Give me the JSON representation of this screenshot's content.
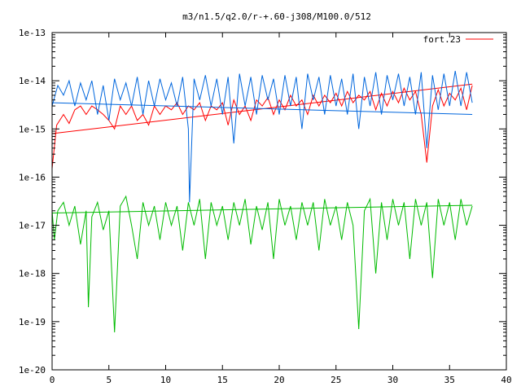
{
  "chart_data": {
    "type": "line",
    "title": "m3/n1.5/q2.0/r-+.60-j308/M100.0/512",
    "xlabel": "",
    "ylabel": "",
    "xlim": [
      0,
      40
    ],
    "ylim": [
      1e-20,
      1e-13
    ],
    "yscale": "log",
    "grid": false,
    "legend": {
      "position": "top-right",
      "entries": [
        "fort.23"
      ]
    },
    "x_ticks": [
      0,
      5,
      10,
      15,
      20,
      25,
      30,
      35,
      40
    ],
    "x_tick_labels": [
      "0",
      "5",
      "10",
      "15",
      "20",
      "25",
      "30",
      "35",
      "40"
    ],
    "y_ticks": [
      1e-20,
      1e-19,
      1e-18,
      1e-17,
      1e-16,
      1e-15,
      1e-14,
      1e-13
    ],
    "y_tick_labels": [
      "1e-20",
      "1e-19",
      "1e-18",
      "1e-17",
      "1e-16",
      "1e-15",
      "1e-14",
      "1e-13"
    ],
    "series": [
      {
        "name": "fort.23",
        "color": "#ff0000",
        "x": [
          0,
          0.4,
          1,
          1.5,
          2,
          2.5,
          3,
          3.5,
          4,
          4.5,
          5,
          5.5,
          6,
          6.5,
          7,
          7.5,
          8,
          8.5,
          9,
          9.5,
          10,
          10.5,
          11,
          11.5,
          12,
          12.5,
          13,
          13.5,
          14,
          14.5,
          15,
          15.5,
          16,
          16.5,
          17,
          17.5,
          18,
          18.5,
          19,
          19.5,
          20,
          20.5,
          21,
          21.5,
          22,
          22.5,
          23,
          23.5,
          24,
          24.5,
          25,
          25.5,
          26,
          26.5,
          27,
          27.5,
          28,
          28.5,
          29,
          29.5,
          30,
          30.5,
          31,
          31.5,
          32,
          32.5,
          33,
          33.5,
          34,
          34.5,
          35,
          35.5,
          36,
          36.5,
          37
        ],
        "y": [
          1.5e-16,
          1.2e-15,
          2e-15,
          1.3e-15,
          2.5e-15,
          3e-15,
          2e-15,
          3e-15,
          2.5e-15,
          2e-15,
          1.5e-15,
          1e-15,
          3e-15,
          2e-15,
          3e-15,
          1.5e-15,
          2e-15,
          1.2e-15,
          3e-15,
          2e-15,
          3e-15,
          2.5e-15,
          3.5e-15,
          2e-15,
          3e-15,
          2.5e-15,
          3.5e-15,
          1.5e-15,
          3e-15,
          2.5e-15,
          3.5e-15,
          1.2e-15,
          4e-15,
          2e-15,
          3e-15,
          1.5e-15,
          4e-15,
          3e-15,
          4.5e-15,
          2e-15,
          4e-15,
          2.5e-15,
          5e-15,
          3e-15,
          4e-15,
          2e-15,
          5e-15,
          3e-15,
          5e-15,
          3.5e-15,
          5.5e-15,
          3e-15,
          6e-15,
          3.5e-15,
          5e-15,
          4e-15,
          6e-15,
          2.5e-15,
          5.5e-15,
          3e-15,
          6e-15,
          3.5e-15,
          7e-15,
          4e-15,
          6e-15,
          2e-15,
          2e-16,
          3e-15,
          6.5e-15,
          3e-15,
          5.5e-15,
          4e-15,
          7e-15,
          2.5e-15,
          8e-15
        ],
        "trend": {
          "x": [
            0,
            37
          ],
          "y": [
            8e-16,
            8.5e-15
          ]
        }
      },
      {
        "name": "",
        "color": "#0066dd",
        "x": [
          0,
          0.5,
          1,
          1.5,
          2,
          2.5,
          3,
          3.5,
          4,
          4.5,
          5,
          5.5,
          6,
          6.5,
          7,
          7.5,
          8,
          8.5,
          9,
          9.5,
          10,
          10.5,
          11,
          11.5,
          12,
          12.1,
          12.5,
          13,
          13.5,
          14,
          14.5,
          15,
          15.5,
          16,
          16.5,
          17,
          17.5,
          18,
          18.5,
          19,
          19.5,
          20,
          20.5,
          21,
          21.5,
          22,
          22.5,
          23,
          23.5,
          24,
          24.5,
          25,
          25.5,
          26,
          26.5,
          27,
          27.5,
          28,
          28.5,
          29,
          29.5,
          30,
          30.5,
          31,
          31.5,
          32,
          32.5,
          33,
          33.5,
          34,
          34.5,
          35,
          35.5,
          36,
          36.5,
          37
        ],
        "y": [
          3e-15,
          8e-15,
          5e-15,
          1e-14,
          3e-15,
          9e-15,
          4e-15,
          1e-14,
          2e-15,
          8e-15,
          1.5e-15,
          1.1e-14,
          4e-15,
          9e-15,
          3e-15,
          1.2e-14,
          2e-15,
          1e-14,
          3e-15,
          1.1e-14,
          4e-15,
          9e-15,
          3e-15,
          1.2e-14,
          1e-15,
          3e-17,
          1.1e-14,
          4e-15,
          1.3e-14,
          3e-15,
          1.1e-14,
          2e-15,
          1.2e-14,
          5e-16,
          1.4e-14,
          3e-15,
          1.2e-14,
          2e-15,
          1.3e-14,
          4e-15,
          1.1e-14,
          2e-15,
          1.3e-14,
          3e-15,
          1.2e-14,
          1e-15,
          1.4e-14,
          4e-15,
          1.2e-14,
          2e-15,
          1.3e-14,
          3e-15,
          1.1e-14,
          2e-15,
          1.4e-14,
          1e-15,
          1.2e-14,
          3e-15,
          1.5e-14,
          2e-15,
          1.3e-14,
          4e-15,
          1.4e-14,
          3e-15,
          1.2e-14,
          2e-15,
          1.5e-14,
          4e-16,
          1.3e-14,
          2.5e-15,
          1.4e-14,
          3e-15,
          1.6e-14,
          3e-15,
          1.5e-14,
          3.5e-15
        ],
        "trend": {
          "x": [
            0,
            37
          ],
          "y": [
            3.5e-15,
            2e-15
          ]
        }
      },
      {
        "name": "",
        "color": "#00bb00",
        "x": [
          0,
          0.2,
          0.5,
          1,
          1.5,
          2,
          2.5,
          3,
          3.2,
          3.5,
          4,
          4.5,
          5,
          5.5,
          6,
          6.5,
          7,
          7.5,
          8,
          8.5,
          9,
          9.5,
          10,
          10.5,
          11,
          11.5,
          12,
          12.5,
          13,
          13.5,
          14,
          14.5,
          15,
          15.5,
          16,
          16.5,
          17,
          17.5,
          18,
          18.5,
          19,
          19.5,
          20,
          20.5,
          21,
          21.5,
          22,
          22.5,
          23,
          23.5,
          24,
          24.5,
          25,
          25.5,
          26,
          26.5,
          27,
          27.5,
          28,
          28.5,
          29,
          29.5,
          30,
          30.5,
          31,
          31.5,
          32,
          32.5,
          33,
          33.5,
          34,
          34.5,
          35,
          35.5,
          36,
          36.5,
          37
        ],
        "y": [
          2e-17,
          5e-18,
          2e-17,
          3e-17,
          1e-17,
          2.5e-17,
          4e-18,
          2e-17,
          2e-19,
          1.5e-17,
          3e-17,
          8e-18,
          2e-17,
          6e-20,
          2.5e-17,
          4e-17,
          1e-17,
          2e-18,
          3e-17,
          1e-17,
          2.5e-17,
          5e-18,
          3e-17,
          1e-17,
          2.5e-17,
          3e-18,
          3e-17,
          1e-17,
          3.5e-17,
          2e-18,
          3e-17,
          1e-17,
          2.5e-17,
          5e-18,
          3e-17,
          1e-17,
          3.5e-17,
          4e-18,
          2.5e-17,
          8e-18,
          3e-17,
          2e-18,
          3.5e-17,
          1e-17,
          2.5e-17,
          5e-18,
          3e-17,
          1e-17,
          3e-17,
          3e-18,
          3.5e-17,
          1e-17,
          2.5e-17,
          5e-18,
          3e-17,
          1e-17,
          7e-20,
          2e-17,
          3.5e-17,
          1e-18,
          3e-17,
          5e-18,
          3.5e-17,
          1e-17,
          3e-17,
          2e-18,
          3.5e-17,
          1e-17,
          3e-17,
          8e-19,
          3.5e-17,
          1e-17,
          3e-17,
          5e-18,
          3.5e-17,
          1e-17,
          2.5e-17
        ],
        "trend": {
          "x": [
            0,
            37
          ],
          "y": [
            1.8e-17,
            2.6e-17
          ]
        }
      }
    ]
  }
}
